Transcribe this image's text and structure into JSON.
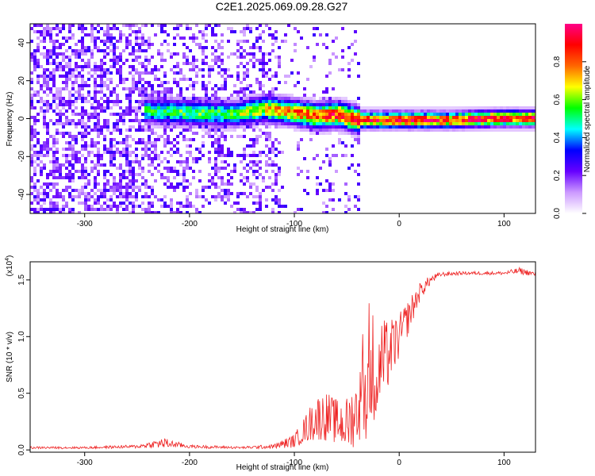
{
  "title": "C2E1.2025.069.09.28.G27",
  "chart_data": [
    {
      "type": "heatmap",
      "xlabel": "Height of straight line (km)",
      "ylabel": "Frequency (Hz)",
      "xlim": [
        -352,
        130
      ],
      "ylim": [
        -50,
        50
      ],
      "xticks": [
        -300,
        -200,
        -100,
        0,
        100
      ],
      "yticks": [
        -40,
        -20,
        0,
        20,
        40
      ],
      "colorbar": {
        "label": "Normalized spectral amplitude",
        "range": [
          0,
          1
        ],
        "ticks": [
          0.0,
          0.2,
          0.4,
          0.6,
          0.8
        ],
        "colors": [
          "#ffffff",
          "#cc99ff",
          "#6600ff",
          "#0000ff",
          "#00ffff",
          "#00ff00",
          "#ffff00",
          "#ff6600",
          "#ff0000",
          "#ff0088"
        ]
      },
      "ridge": [
        {
          "x": -245,
          "f": 5,
          "amp": 0.55
        },
        {
          "x": -200,
          "f": 4,
          "amp": 0.6
        },
        {
          "x": -160,
          "f": 3,
          "amp": 0.6
        },
        {
          "x": -130,
          "f": 6,
          "amp": 0.75
        },
        {
          "x": -100,
          "f": 4,
          "amp": 0.85
        },
        {
          "x": -80,
          "f": 2,
          "amp": 0.9
        },
        {
          "x": -60,
          "f": 3,
          "amp": 0.95
        },
        {
          "x": -40,
          "f": 0,
          "amp": 1.0
        },
        {
          "x": 0,
          "f": 0,
          "amp": 1.0
        },
        {
          "x": 50,
          "f": 0,
          "amp": 0.95
        },
        {
          "x": 90,
          "f": 1,
          "amp": 1.0
        },
        {
          "x": 130,
          "f": 1,
          "amp": 0.95
        }
      ]
    },
    {
      "type": "line",
      "xlabel": "Height of straight line (km)",
      "ylabel": "SNR (10 * v/v)",
      "yscale_label": "(x10",
      "yscale_exp": "4",
      "xlim": [
        -352,
        130
      ],
      "ylim": [
        -0.02,
        1.66
      ],
      "xticks": [
        -300,
        -200,
        -100,
        0,
        100
      ],
      "yticks": [
        0.0,
        0.5,
        1.0,
        1.5
      ],
      "color": "#ee2222",
      "series": [
        {
          "x": [
            -352,
            -300,
            -250,
            -235,
            -225,
            -215,
            -200,
            -150,
            -120,
            -100,
            -90,
            -80,
            -70,
            -60,
            -50,
            -40,
            -30,
            -25,
            -20,
            -10,
            0,
            10,
            20,
            30,
            40,
            60,
            80,
            100,
            115,
            130
          ],
          "y": [
            0.02,
            0.02,
            0.03,
            0.05,
            0.06,
            0.05,
            0.03,
            0.02,
            0.03,
            0.08,
            0.18,
            0.28,
            0.3,
            0.25,
            0.22,
            0.35,
            0.55,
            0.75,
            0.7,
            0.85,
            1.0,
            1.2,
            1.4,
            1.5,
            1.55,
            1.56,
            1.56,
            1.56,
            1.58,
            1.55
          ],
          "noise_env": [
            0.01,
            0.01,
            0.015,
            0.03,
            0.05,
            0.03,
            0.015,
            0.01,
            0.02,
            0.06,
            0.12,
            0.2,
            0.22,
            0.2,
            0.25,
            0.3,
            0.45,
            0.5,
            0.45,
            0.3,
            0.2,
            0.15,
            0.08,
            0.04,
            0.02,
            0.015,
            0.015,
            0.015,
            0.03,
            0.02
          ]
        }
      ]
    }
  ]
}
